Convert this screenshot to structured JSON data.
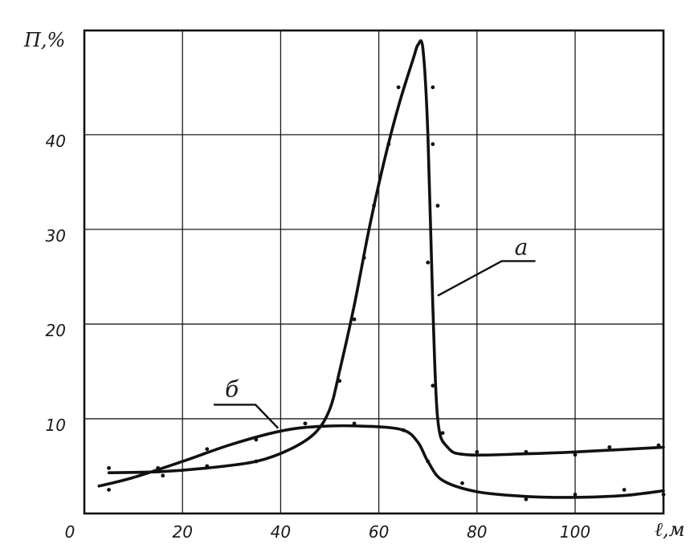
{
  "chart_data": {
    "type": "line",
    "title": "",
    "xlabel": "ℓ,м",
    "ylabel": "Π,%",
    "xlim": [
      0,
      118
    ],
    "ylim": [
      0,
      51
    ],
    "x_ticks": [
      "0",
      "20",
      "40",
      "60",
      "80",
      "100"
    ],
    "x_tick_values": [
      0,
      20,
      40,
      60,
      80,
      100
    ],
    "y_ticks": [
      "10",
      "20",
      "30",
      "40"
    ],
    "y_tick_values": [
      10,
      20,
      30,
      40
    ],
    "grid_x": [
      20,
      40,
      60,
      80,
      100,
      118
    ],
    "grid_y": [
      10,
      20,
      30,
      40,
      51
    ],
    "grid": true,
    "series": [
      {
        "name": "а",
        "curve": [
          [
            5,
            4.3
          ],
          [
            15,
            4.4
          ],
          [
            25,
            4.8
          ],
          [
            35,
            5.5
          ],
          [
            42,
            6.8
          ],
          [
            47,
            8.5
          ],
          [
            50,
            11
          ],
          [
            52,
            15
          ],
          [
            55,
            22
          ],
          [
            58,
            30
          ],
          [
            61,
            37
          ],
          [
            64,
            43
          ],
          [
            67,
            48
          ],
          [
            68,
            49.5
          ],
          [
            69,
            49
          ],
          [
            70,
            40
          ],
          [
            71,
            22
          ],
          [
            72,
            10
          ],
          [
            74,
            7
          ],
          [
            78,
            6.2
          ],
          [
            90,
            6.3
          ],
          [
            100,
            6.5
          ],
          [
            118,
            7
          ]
        ],
        "points": [
          [
            5,
            4.8
          ],
          [
            15,
            4.8
          ],
          [
            25,
            5
          ],
          [
            35,
            5.5
          ],
          [
            45,
            9.5
          ],
          [
            52,
            14
          ],
          [
            55,
            20.5
          ],
          [
            57,
            27
          ],
          [
            59,
            32.5
          ],
          [
            62,
            39
          ],
          [
            64,
            45
          ],
          [
            70,
            26.5
          ],
          [
            71,
            45
          ],
          [
            71,
            39
          ],
          [
            72,
            32.5
          ],
          [
            71,
            13.5
          ],
          [
            73,
            8.5
          ],
          [
            80,
            6.5
          ],
          [
            90,
            6.5
          ],
          [
            100,
            6.2
          ],
          [
            107,
            7
          ],
          [
            117,
            7.2
          ]
        ]
      },
      {
        "name": "б",
        "curve": [
          [
            3,
            2.9
          ],
          [
            10,
            3.8
          ],
          [
            20,
            5.5
          ],
          [
            30,
            7.3
          ],
          [
            40,
            8.7
          ],
          [
            48,
            9.2
          ],
          [
            58,
            9.2
          ],
          [
            65,
            8.8
          ],
          [
            68,
            7.5
          ],
          [
            70,
            5.5
          ],
          [
            73,
            3.5
          ],
          [
            80,
            2.3
          ],
          [
            90,
            1.8
          ],
          [
            100,
            1.7
          ],
          [
            110,
            1.9
          ],
          [
            118,
            2.4
          ]
        ],
        "points": [
          [
            5,
            2.5
          ],
          [
            15,
            4.5
          ],
          [
            16,
            4
          ],
          [
            25,
            6.8
          ],
          [
            35,
            7.8
          ],
          [
            45,
            9.5
          ],
          [
            55,
            9.5
          ],
          [
            65,
            8.8
          ],
          [
            70,
            5.5
          ],
          [
            77,
            3.2
          ],
          [
            90,
            1.5
          ],
          [
            100,
            2
          ],
          [
            110,
            2.5
          ],
          [
            118,
            2
          ]
        ]
      }
    ],
    "series_labels": [
      {
        "series": "а",
        "text": "а",
        "label_at": [
          87,
          27.5
        ],
        "arrow_to": [
          72,
          23
        ]
      },
      {
        "series": "б",
        "text": "б",
        "label_at": [
          28,
          12.5
        ],
        "arrow_to": [
          39.5,
          9
        ]
      }
    ]
  }
}
